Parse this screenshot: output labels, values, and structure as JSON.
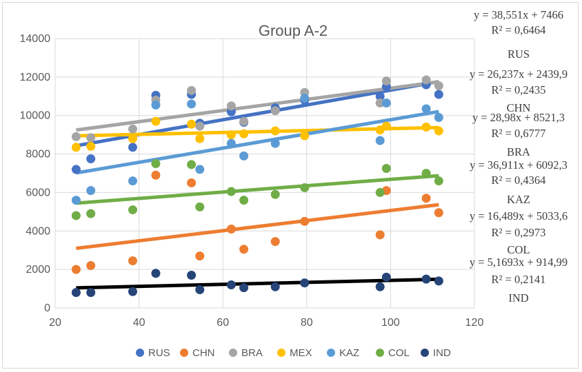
{
  "chart_data": {
    "type": "scatter",
    "title": "Group A-2",
    "xlabel": "",
    "ylabel": "",
    "xlim": [
      20,
      120
    ],
    "ylim": [
      0,
      14000
    ],
    "xticks": [
      20,
      40,
      60,
      80,
      100,
      120
    ],
    "yticks": [
      0,
      2000,
      4000,
      6000,
      8000,
      10000,
      12000,
      14000
    ],
    "grid": true,
    "legend_position": "bottom",
    "x": [
      25,
      28.5,
      38.5,
      44,
      52.5,
      54.5,
      62,
      65,
      72.5,
      79.5,
      97.5,
      99,
      108.5,
      111.5
    ],
    "series": [
      {
        "name": "RUS",
        "color": "#4472C4",
        "values": [
          7200,
          7750,
          8350,
          11050,
          11100,
          9600,
          10200,
          9650,
          10400,
          10800,
          11000,
          11500,
          11600,
          11100
        ],
        "trend": {
          "slope": 38.551,
          "intercept": 7466
        },
        "equation": "y = 38,551x + 7466",
        "r2": "R² = 0,6464",
        "label": "RUS"
      },
      {
        "name": "CHN",
        "color": "#ED7D31",
        "values": [
          2000,
          2200,
          2450,
          6900,
          6500,
          2700,
          4100,
          3050,
          3450,
          4500,
          3800,
          6100,
          5700,
          4950
        ],
        "trend": {
          "slope": 26.237,
          "intercept": 2439.9
        },
        "equation": "y = 26,237x + 2439,9",
        "r2": "R² = 0,2435",
        "label": "CHN"
      },
      {
        "name": "BRA",
        "color": "#A5A5A5",
        "values": [
          8900,
          8850,
          9300,
          10800,
          11300,
          9450,
          10500,
          9700,
          10250,
          11200,
          10650,
          11800,
          11850,
          11550
        ],
        "trend": {
          "slope": 28.98,
          "intercept": 8521.3
        },
        "equation": "y = 28,98x + 8521,3",
        "r2": "R² = 0,6777",
        "label": "BRA"
      },
      {
        "name": "MEX",
        "color": "#FFC000",
        "values": [
          8350,
          8400,
          8800,
          9700,
          9550,
          8800,
          9000,
          9050,
          9200,
          8950,
          9250,
          9450,
          9400,
          9200
        ],
        "trend": {
          "slope": 5.0,
          "intercept": 8820
        },
        "equation": "",
        "r2": "",
        "label": ""
      },
      {
        "name": "KAZ",
        "color": "#5B9BD5",
        "values": [
          5600,
          6100,
          6600,
          10550,
          10600,
          7200,
          8550,
          7900,
          8550,
          10900,
          8700,
          10650,
          10350,
          9900
        ],
        "trend": {
          "slope": 36.911,
          "intercept": 6092.3
        },
        "equation": "y = 36,911x + 6092,3",
        "r2": "R² = 0,4364",
        "label": "KAZ"
      },
      {
        "name": "COL",
        "color": "#70AD47",
        "values": [
          4800,
          4900,
          5100,
          7500,
          7450,
          5250,
          6050,
          5600,
          5900,
          6250,
          6000,
          7250,
          7000,
          6600
        ],
        "trend": {
          "slope": 16.489,
          "intercept": 5033.6
        },
        "equation": "y = 16,489x + 5033,6",
        "r2": "R² = 0,2973",
        "label": "COL"
      },
      {
        "name": "IND",
        "color": "#264478",
        "values": [
          800,
          800,
          850,
          1800,
          1700,
          950,
          1200,
          1050,
          1100,
          1300,
          1100,
          1600,
          1500,
          1400
        ],
        "trend": {
          "slope": 5.1693,
          "intercept": 914.99
        },
        "equation": "y = 5,1693x + 914,99",
        "r2": "R² = 0,2141",
        "label": "IND"
      }
    ]
  }
}
